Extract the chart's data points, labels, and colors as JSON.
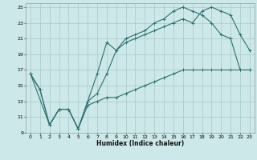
{
  "title": "",
  "xlabel": "Humidex (Indice chaleur)",
  "bg_color": "#cce8e8",
  "grid_color": "#aac8c8",
  "line_color": "#2e7070",
  "xlim": [
    -0.5,
    23.5
  ],
  "ylim": [
    9,
    25.5
  ],
  "xticks": [
    0,
    1,
    2,
    3,
    4,
    5,
    6,
    7,
    8,
    9,
    10,
    11,
    12,
    13,
    14,
    15,
    16,
    17,
    18,
    19,
    20,
    21,
    22,
    23
  ],
  "yticks": [
    9,
    11,
    13,
    15,
    17,
    19,
    21,
    23,
    25
  ],
  "line1_x": [
    0,
    1,
    2,
    3,
    4,
    5,
    6,
    7,
    8,
    9,
    10,
    11,
    12,
    13,
    14,
    15,
    16,
    17,
    18,
    19,
    20,
    21,
    22,
    23
  ],
  "line1_y": [
    16.5,
    14.5,
    10.0,
    12.0,
    12.0,
    9.5,
    13.0,
    16.5,
    20.5,
    19.5,
    21.0,
    21.5,
    22.0,
    23.0,
    23.5,
    24.5,
    25.0,
    24.5,
    24.0,
    23.0,
    21.5,
    21.0,
    17.0,
    17.0
  ],
  "line2_x": [
    0,
    1,
    2,
    3,
    4,
    5,
    6,
    7,
    8,
    9,
    10,
    11,
    12,
    13,
    14,
    15,
    16,
    17,
    18,
    19,
    20,
    21,
    22,
    23
  ],
  "line2_y": [
    16.5,
    14.5,
    10.0,
    12.0,
    12.0,
    9.5,
    13.0,
    14.0,
    16.5,
    19.5,
    20.5,
    21.0,
    21.5,
    22.0,
    22.5,
    23.0,
    23.5,
    23.0,
    24.5,
    25.0,
    24.5,
    24.0,
    21.5,
    19.5
  ],
  "line3_x": [
    0,
    2,
    3,
    4,
    5,
    6,
    7,
    8,
    9,
    10,
    11,
    12,
    13,
    14,
    15,
    16,
    17,
    18,
    19,
    20,
    21,
    22,
    23
  ],
  "line3_y": [
    16.5,
    10.0,
    12.0,
    12.0,
    9.5,
    12.5,
    13.0,
    13.5,
    13.5,
    14.0,
    14.5,
    15.0,
    15.5,
    16.0,
    16.5,
    17.0,
    17.0,
    17.0,
    17.0,
    17.0,
    17.0,
    17.0,
    17.0
  ]
}
